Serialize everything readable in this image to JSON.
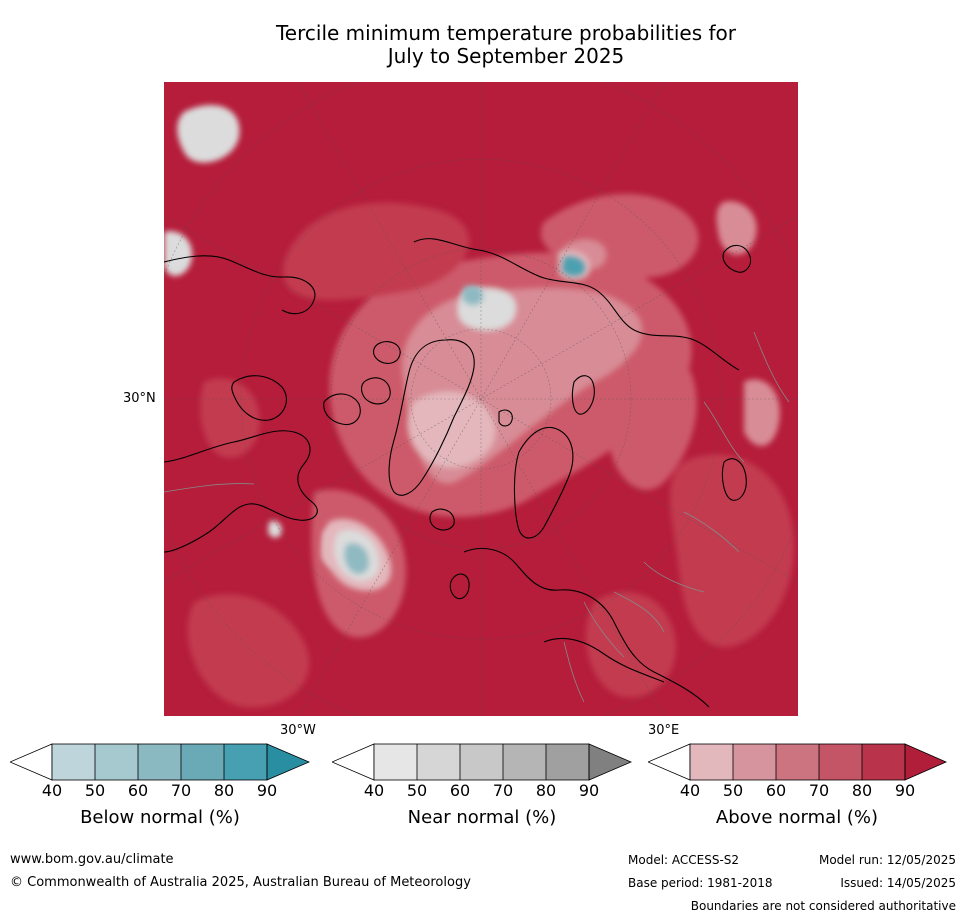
{
  "title_line1": "Tercile minimum temperature probabilities for",
  "title_line2": "July to September 2025",
  "map": {
    "lat_label": "30°N",
    "lon_label_w": "30°W",
    "lon_label_e": "30°E",
    "colors": {
      "above_90": "#b51d3a",
      "above_80": "#c33a50",
      "above_70": "#cd5a6b",
      "above_60": "#d88c96",
      "above_50": "#e3b7bc",
      "near": "#dcdcdc",
      "below_60": "#8fbac2",
      "below_80": "#4ba0b0",
      "coast": "#000000",
      "border": "#888888"
    }
  },
  "colorbars": [
    {
      "label": "Below normal (%)",
      "ticks": [
        "40",
        "50",
        "60",
        "70",
        "80",
        "90"
      ],
      "colors": [
        "#ffffff",
        "#bdd5db",
        "#a6c8cf",
        "#8ab9c2",
        "#6aa9b6",
        "#47a0b2",
        "#2a8ea3"
      ]
    },
    {
      "label": "Near normal (%)",
      "ticks": [
        "40",
        "50",
        "60",
        "70",
        "80",
        "90"
      ],
      "colors": [
        "#ffffff",
        "#e6e6e6",
        "#d6d6d6",
        "#c8c8c8",
        "#b5b5b5",
        "#a0a0a0",
        "#808080"
      ]
    },
    {
      "label": "Above normal (%)",
      "ticks": [
        "40",
        "50",
        "60",
        "70",
        "80",
        "90"
      ],
      "colors": [
        "#ffffff",
        "#e2b8bd",
        "#d6959e",
        "#cc7580",
        "#c45566",
        "#b9344b",
        "#b01e3a"
      ]
    }
  ],
  "footer": {
    "url": "www.bom.gov.au/climate",
    "copyright": "© Commonwealth of Australia 2025, Australian Bureau of Meteorology",
    "model": "Model: ACCESS-S2",
    "base_period": "Base period: 1981-2018",
    "model_run": "Model run: 12/05/2025",
    "issued": "Issued: 14/05/2025",
    "disclaimer": "Boundaries are not considered authoritative"
  }
}
